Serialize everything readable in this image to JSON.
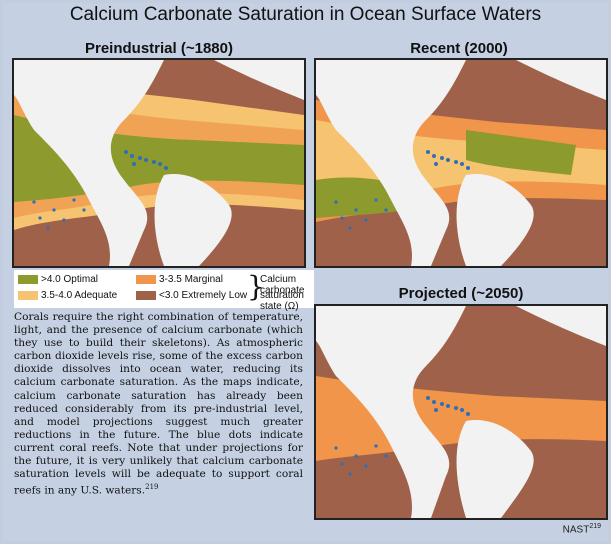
{
  "title": "Calcium Carbonate Saturation in Ocean Surface Waters",
  "maps": [
    {
      "id": "preindustrial",
      "label": "Preindustrial (~1880)"
    },
    {
      "id": "recent",
      "label": "Recent (2000)"
    },
    {
      "id": "projected",
      "label": "Projected (~2050)"
    }
  ],
  "legend": {
    "items": [
      {
        "label": ">4.0 Optimal",
        "color": "#8c9a2e"
      },
      {
        "label": "3-3.5 Marginal",
        "color": "#f0954a"
      },
      {
        "label": "3.5-4.0 Adequate",
        "color": "#f6c470"
      },
      {
        "label": "<3.0 Extremely Low",
        "color": "#a0614a"
      }
    ],
    "caption_line1": "Calcium carbonate",
    "caption_line2": "saturation state (Ω)"
  },
  "body_text": "Corals require the right combination of temperature, light, and the presence of calcium carbonate (which they use to build their skeletons). As atmospheric carbon dioxide levels rise, some of the excess carbon dioxide dissolves into ocean water, reducing its calcium carbonate saturation. As the maps indicate, calcium carbonate saturation has already been reduced considerably from its pre-industrial level, and model projections suggest much greater reductions in the future. The blue dots indicate current coral reefs. Note that under projections for the future, it is very unlikely that calcium carbonate saturation levels will be adequate to support coral reefs in any U.S. waters.",
  "body_ref": "219",
  "credit": "NAST",
  "credit_ref": "219",
  "colors": {
    "land": "#f2f2f2",
    "coral": "#2f6fb7",
    "optimal": "#8c9a2e",
    "adequate": "#f6c470",
    "marginal": "#f0954a",
    "extremely_low": "#a0614a"
  }
}
